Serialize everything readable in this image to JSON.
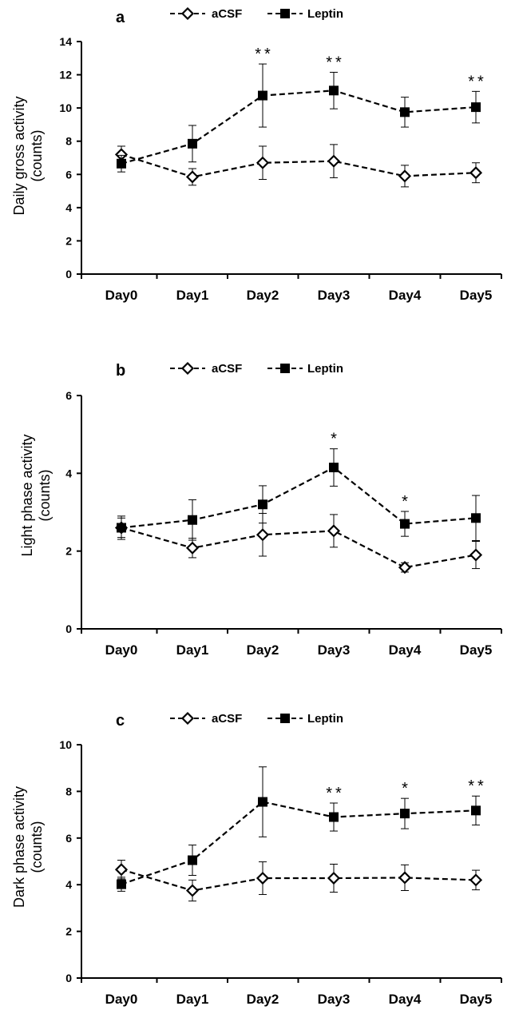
{
  "chart_data": [
    {
      "type": "line",
      "panel_label": "a",
      "ylabel_line1": "Daily gross activity",
      "ylabel_line2": "(counts)",
      "ylim": [
        0,
        14
      ],
      "yticks": [
        "0",
        "2",
        "4",
        "6",
        "8",
        "10",
        "12",
        "14"
      ],
      "categories": [
        "Day0",
        "Day1",
        "Day2",
        "Day3",
        "Day4",
        "Day5"
      ],
      "legend": [
        "aCSF",
        "Leptin"
      ],
      "legend_position": "top-center",
      "grid": false,
      "series": [
        {
          "name": "aCSF",
          "marker": "open-diamond",
          "values": [
            7.2,
            5.85,
            6.7,
            6.8,
            5.9,
            6.1
          ],
          "errors": [
            0.5,
            0.5,
            1.0,
            1.0,
            0.65,
            0.6
          ]
        },
        {
          "name": "Leptin",
          "marker": "filled-square",
          "values": [
            6.65,
            7.85,
            10.75,
            11.05,
            9.75,
            10.05
          ],
          "errors": [
            0.5,
            1.1,
            1.9,
            1.1,
            0.9,
            0.95
          ]
        }
      ],
      "significance": [
        "",
        "",
        "**",
        "**",
        "",
        "**"
      ]
    },
    {
      "type": "line",
      "panel_label": "b",
      "ylabel_line1": "Light phase activity",
      "ylabel_line2": "(counts)",
      "ylim": [
        0,
        6
      ],
      "yticks": [
        "0",
        "2",
        "4",
        "6"
      ],
      "categories": [
        "Day0",
        "Day1",
        "Day2",
        "Day3",
        "Day4",
        "Day5"
      ],
      "legend": [
        "aCSF",
        "Leptin"
      ],
      "legend_position": "top-center",
      "grid": false,
      "series": [
        {
          "name": "aCSF",
          "marker": "open-diamond",
          "values": [
            2.6,
            2.08,
            2.42,
            2.52,
            1.58,
            1.9
          ],
          "errors": [
            0.3,
            0.25,
            0.55,
            0.42,
            0.12,
            0.35
          ]
        },
        {
          "name": "Leptin",
          "marker": "filled-square",
          "values": [
            2.6,
            2.8,
            3.2,
            4.15,
            2.7,
            2.85
          ],
          "errors": [
            0.25,
            0.52,
            0.48,
            0.48,
            0.32,
            0.58
          ]
        }
      ],
      "significance": [
        "",
        "",
        "",
        "*",
        "*",
        ""
      ]
    },
    {
      "type": "line",
      "panel_label": "c",
      "ylabel_line1": "Dark phase activity",
      "ylabel_line2": "(counts)",
      "ylim": [
        0,
        10
      ],
      "yticks": [
        "0",
        "2",
        "4",
        "6",
        "8",
        "10"
      ],
      "categories": [
        "Day0",
        "Day1",
        "Day2",
        "Day3",
        "Day4",
        "Day5"
      ],
      "legend": [
        "aCSF",
        "Leptin"
      ],
      "legend_position": "top-center",
      "grid": false,
      "series": [
        {
          "name": "aCSF",
          "marker": "open-diamond",
          "values": [
            4.65,
            3.75,
            4.28,
            4.28,
            4.3,
            4.2
          ],
          "errors": [
            0.4,
            0.45,
            0.7,
            0.6,
            0.55,
            0.42
          ]
        },
        {
          "name": "Leptin",
          "marker": "filled-square",
          "values": [
            4.02,
            5.05,
            7.55,
            6.9,
            7.05,
            7.18
          ],
          "errors": [
            0.3,
            0.65,
            1.5,
            0.6,
            0.65,
            0.62
          ]
        }
      ],
      "significance": [
        "",
        "",
        "",
        "**",
        "*",
        "**"
      ]
    }
  ]
}
